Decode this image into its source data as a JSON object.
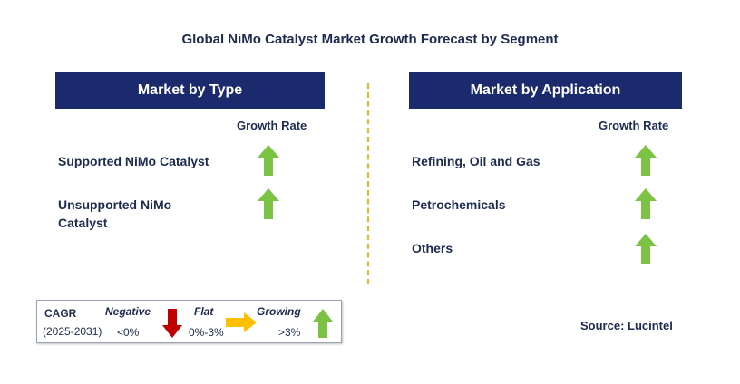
{
  "title": "Global NiMo Catalyst Market Growth Forecast by Segment",
  "left_panel": {
    "header": "Market by Type",
    "growth_label": "Growth Rate",
    "rows": [
      {
        "line1": "Supported NiMo Catalyst",
        "line2": "",
        "trend": "growing"
      },
      {
        "line1": "Unsupported NiMo",
        "line2": "Catalyst",
        "trend": "growing"
      }
    ]
  },
  "right_panel": {
    "header": "Market by Application",
    "growth_label": "Growth Rate",
    "rows": [
      {
        "line1": "Refining, Oil and Gas",
        "trend": "growing"
      },
      {
        "line1": "Petrochemicals",
        "trend": "growing"
      },
      {
        "line1": "Others",
        "trend": "growing"
      }
    ]
  },
  "legend": {
    "cagr_label": "CAGR",
    "period": "(2025-2031)",
    "negative_label": "Negative",
    "negative_range": "<0%",
    "flat_label": "Flat",
    "flat_range": "0%-3%",
    "growing_label": "Growing",
    "growing_range": ">3%"
  },
  "source": "Source: Lucintel",
  "colors": {
    "header_bg": "#1a2a6c",
    "growing_arrow": "#7cc243",
    "negative_arrow": "#c00000",
    "flat_arrow": "#ffc000",
    "divider": "#f0b323"
  }
}
